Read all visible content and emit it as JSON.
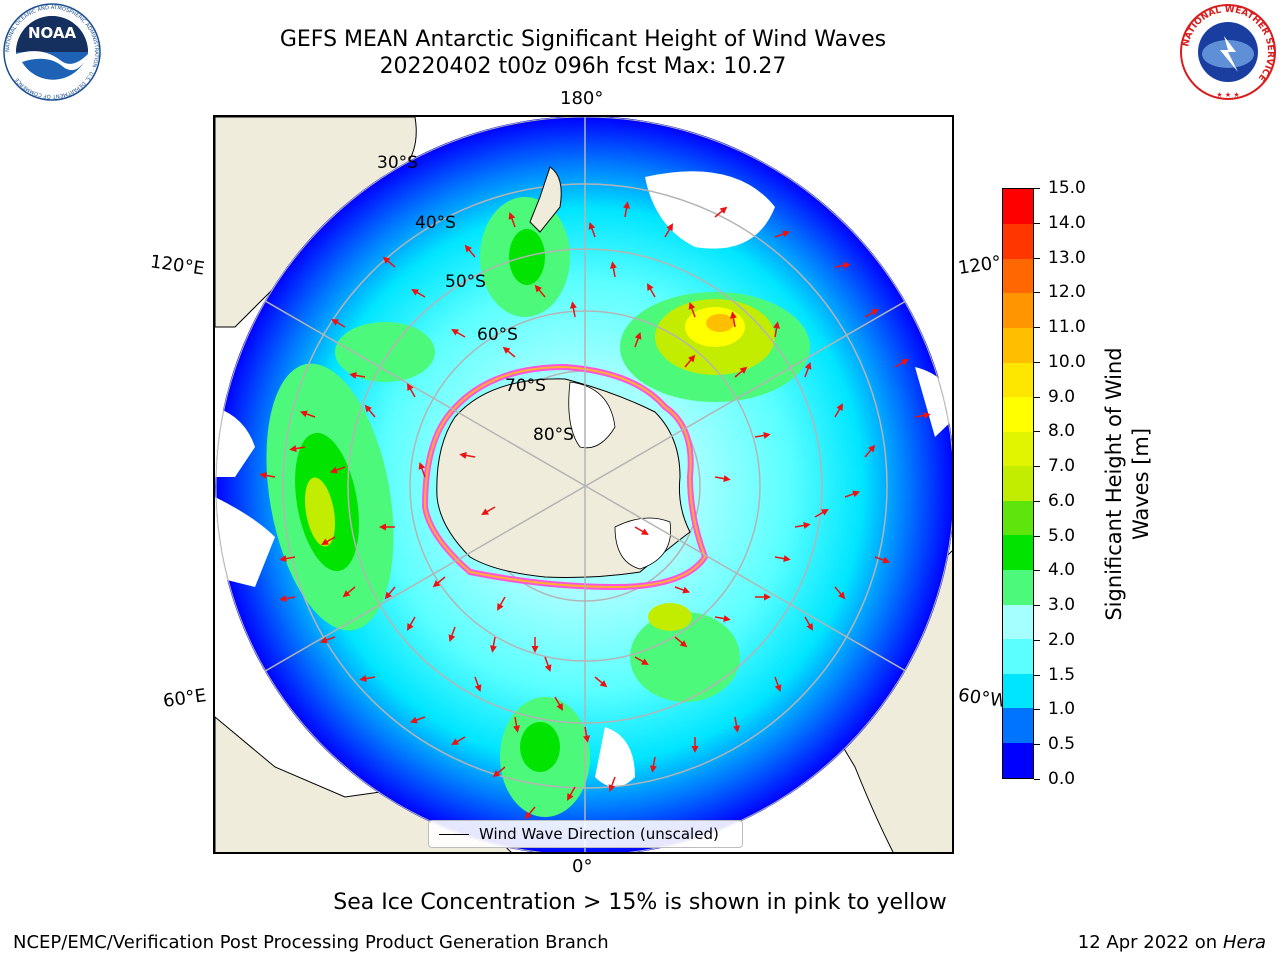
{
  "header": {
    "title_line1": "GEFS MEAN Antarctic Significant Height of Wind Waves",
    "title_line2": "20220402 t00z 096h fcst   Max: 10.27"
  },
  "logos": {
    "noaa": {
      "text": "NOAA",
      "ring_text": "NATIONAL OCEANIC AND ATMOSPHERIC ADMINISTRATION · U.S. DEPARTMENT OF COMMERCE"
    },
    "nws": {
      "ring_text": "NATIONAL WEATHER SERVICE"
    }
  },
  "map": {
    "projection": "South Polar Stereographic",
    "meridian_labels": {
      "top": "180°",
      "left_upper": "120°E",
      "right_upper": "120°",
      "left_lower": "60°E",
      "right_lower": "60°W",
      "bottom": "0°"
    },
    "latitude_labels": [
      "30°S",
      "40°S",
      "50°S",
      "60°S",
      "70°S",
      "80°S"
    ],
    "colors": {
      "land": "#efecdc",
      "ice_edge_outer": "#ff55dd",
      "ice_edge_inner": "#ffb030",
      "arrow": "#ee1111",
      "grid": "#b4b4b4"
    },
    "legend": {
      "label": "Wind Wave Direction (unscaled)"
    }
  },
  "colorbar": {
    "title_line1": "Significant Height of Wind",
    "title_line2": "Waves [m]",
    "levels": [
      0.0,
      0.5,
      1.0,
      1.5,
      2.0,
      3.0,
      4.0,
      5.0,
      6.0,
      7.0,
      8.0,
      9.0,
      10.0,
      11.0,
      12.0,
      13.0,
      14.0,
      15.0
    ],
    "tick_labels": [
      "0.0",
      "0.5",
      "1.0",
      "1.5",
      "2.0",
      "3.0",
      "4.0",
      "5.0",
      "6.0",
      "7.0",
      "8.0",
      "9.0",
      "10.0",
      "11.0",
      "12.0",
      "13.0",
      "14.0",
      "15.0"
    ],
    "colors": [
      "#0000ff",
      "#0073ff",
      "#00e5ff",
      "#5cffff",
      "#a5ffff",
      "#4df97a",
      "#00e400",
      "#5ee60c",
      "#c2ec00",
      "#e2f500",
      "#ffff00",
      "#ffe600",
      "#ffbf00",
      "#ff9500",
      "#ff6800",
      "#ff3600",
      "#ff0000"
    ]
  },
  "footer": {
    "note": "Sea Ice Concentration > 15% is shown in pink to yellow",
    "credit": "NCEP/EMC/Verification Post Processing Product Generation Branch",
    "date": "12 Apr 2022",
    "on_word": "on",
    "machine": "Hera"
  }
}
